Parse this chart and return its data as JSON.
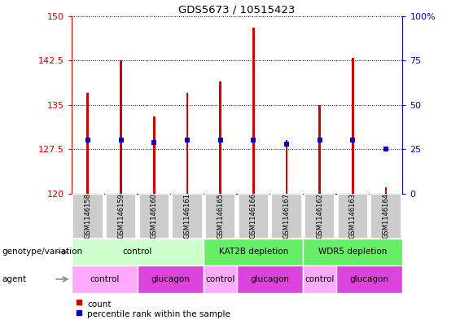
{
  "title": "GDS5673 / 10515423",
  "samples": [
    "GSM1146158",
    "GSM1146159",
    "GSM1146160",
    "GSM1146161",
    "GSM1146165",
    "GSM1146166",
    "GSM1146167",
    "GSM1146162",
    "GSM1146163",
    "GSM1146164"
  ],
  "count_values": [
    137.0,
    142.5,
    133.0,
    137.0,
    139.0,
    148.0,
    129.0,
    135.0,
    143.0,
    121.0
  ],
  "percentile_values": [
    30,
    30,
    29,
    30,
    30,
    30,
    28,
    30,
    30,
    25
  ],
  "y_min": 120,
  "y_max": 150,
  "y_ticks": [
    120,
    127.5,
    135,
    142.5,
    150
  ],
  "y2_ticks": [
    0,
    25,
    50,
    75,
    100
  ],
  "bar_color": "#cc0000",
  "dot_color": "#0000cc",
  "genotype_groups": [
    {
      "label": "control",
      "start": 0,
      "end": 4,
      "color": "#ccffcc"
    },
    {
      "label": "KAT2B depletion",
      "start": 4,
      "end": 7,
      "color": "#66ee66"
    },
    {
      "label": "WDR5 depletion",
      "start": 7,
      "end": 10,
      "color": "#66ee66"
    }
  ],
  "agent_groups": [
    {
      "label": "control",
      "start": 0,
      "end": 2,
      "color": "#ffaaff"
    },
    {
      "label": "glucagon",
      "start": 2,
      "end": 4,
      "color": "#dd44dd"
    },
    {
      "label": "control",
      "start": 4,
      "end": 5,
      "color": "#ffaaff"
    },
    {
      "label": "glucagon",
      "start": 5,
      "end": 7,
      "color": "#dd44dd"
    },
    {
      "label": "control",
      "start": 7,
      "end": 8,
      "color": "#ffaaff"
    },
    {
      "label": "glucagon",
      "start": 8,
      "end": 10,
      "color": "#dd44dd"
    }
  ],
  "left_label_color": "#cc0000",
  "right_label_color": "#0000cc",
  "bg_color": "#ffffff",
  "sample_box_color": "#cccccc",
  "legend_count_color": "#cc0000",
  "legend_pct_color": "#0000cc",
  "bar_width": 0.07,
  "dot_size": 18
}
